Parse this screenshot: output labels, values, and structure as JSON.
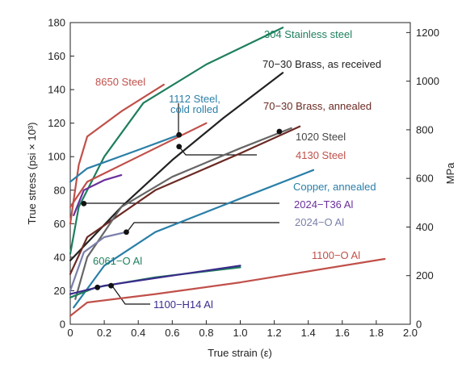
{
  "chart_data": {
    "type": "line",
    "xlabel": "True strain (ε)",
    "ylabel": "True stress (psi × 10³)",
    "ylabel_right": "MPa",
    "xlim": [
      0,
      2.0
    ],
    "ylim": [
      0,
      180
    ],
    "ylim_right": [
      0,
      1241
    ],
    "grid": false,
    "x_ticks": [
      "0",
      "0.2",
      "0.4",
      "0.6",
      "0.8",
      "1.0",
      "1.2",
      "1.4",
      "1.6",
      "1.8",
      "2.0"
    ],
    "y_ticks": [
      "0",
      "20",
      "40",
      "60",
      "80",
      "100",
      "120",
      "140",
      "160",
      "180"
    ],
    "y_right_ticks": [
      "0",
      "200",
      "400",
      "600",
      "800",
      "1000",
      "1200"
    ],
    "series": [
      {
        "name": "304 Stainless steel",
        "color": "#1e7f5c",
        "x": [
          0,
          0.05,
          0.2,
          0.43,
          0.8,
          1.25
        ],
        "y": [
          42,
          70,
          100,
          132,
          155,
          177
        ]
      },
      {
        "name": "70−30 Brass, as received",
        "color": "#222222",
        "x": [
          0,
          0.3,
          0.6,
          0.9,
          1.25
        ],
        "y": [
          38,
          70,
          98,
          123,
          150
        ]
      },
      {
        "name": "8650 Steel",
        "color": "#c0504a",
        "x": [
          0,
          0.05,
          0.1,
          0.3,
          0.55
        ],
        "y": [
          60,
          95,
          112,
          127,
          143
        ]
      },
      {
        "name": "1112 Steel, cold rolled",
        "color": "#2a7fa8",
        "x": [
          0,
          0.1,
          0.4,
          0.64
        ],
        "y": [
          85,
          93,
          104,
          113
        ]
      },
      {
        "name": "70−30 Brass, annealed",
        "color": "#6b2a24",
        "x": [
          0,
          0.1,
          0.5,
          1.0,
          1.35
        ],
        "y": [
          30,
          52,
          80,
          102,
          118
        ]
      },
      {
        "name": "1020 Steel",
        "color": "#666666",
        "x": [
          0.03,
          0.1,
          0.3,
          0.6,
          1.0,
          1.3
        ],
        "y": [
          15,
          40,
          70,
          88,
          105,
          117
        ]
      },
      {
        "name": "4130 Steel",
        "color": "#c0504a",
        "x": [
          0,
          0.1,
          0.4,
          0.8
        ],
        "y": [
          70,
          85,
          100,
          120
        ]
      },
      {
        "name": "Copper, annealed",
        "color": "#2a7fa8",
        "x": [
          0.02,
          0.2,
          0.5,
          1.0,
          1.43
        ],
        "y": [
          10,
          35,
          55,
          75,
          92
        ]
      },
      {
        "name": "2024−T36 Al",
        "color": "#6a2f9c",
        "x": [
          0.02,
          0.08,
          0.2,
          0.3
        ],
        "y": [
          65,
          80,
          86,
          89
        ]
      },
      {
        "name": "2024−O Al",
        "color": "#7b7faa",
        "x": [
          0,
          0.08,
          0.2,
          0.33
        ],
        "y": [
          20,
          43,
          52,
          55
        ]
      },
      {
        "name": "1100−O Al",
        "color": "#c0504a",
        "x": [
          0,
          0.1,
          0.5,
          1.0,
          1.85
        ],
        "y": [
          5,
          13,
          18,
          25,
          39
        ]
      },
      {
        "name": "6061−O Al",
        "color": "#1e7f5c",
        "x": [
          0,
          0.15,
          0.5,
          1.0
        ],
        "y": [
          16,
          22,
          28,
          34
        ]
      },
      {
        "name": "1100−H14 Al",
        "color": "#3b2a8c",
        "x": [
          0,
          0.2,
          0.6,
          1.0
        ],
        "y": [
          18,
          23,
          29,
          35
        ]
      }
    ],
    "annotations": [
      {
        "label": "304 Stainless steel",
        "color": "#1e7f5c"
      },
      {
        "label": "70−30 Brass, as received",
        "color": "#222222"
      },
      {
        "label": "8650 Steel",
        "color": "#c0504a"
      },
      {
        "label": "1112 Steel,",
        "color": "#2a7fa8"
      },
      {
        "label": "cold rolled",
        "color": "#2a7fa8"
      },
      {
        "label": "70−30 Brass, annealed",
        "color": "#6b2a24"
      },
      {
        "label": "1020 Steel",
        "color": "#444444"
      },
      {
        "label": "4130 Steel",
        "color": "#c0504a"
      },
      {
        "label": "Copper, annealed",
        "color": "#2a7fa8"
      },
      {
        "label": "2024−T36 Al",
        "color": "#6a2f9c"
      },
      {
        "label": "2024−O Al",
        "color": "#7b7faa"
      },
      {
        "label": "1100−O Al",
        "color": "#c0504a"
      },
      {
        "label": "6061−O Al",
        "color": "#1e7f5c"
      },
      {
        "label": "1100−H14 Al",
        "color": "#3b2a8c"
      }
    ],
    "markers": [
      {
        "x": 0.64,
        "y": 113
      },
      {
        "x": 1.23,
        "y": 115
      },
      {
        "x": 0.64,
        "y": 106
      },
      {
        "x": 0.08,
        "y": 72
      },
      {
        "x": 0.33,
        "y": 55
      },
      {
        "x": 0.16,
        "y": 22
      },
      {
        "x": 0.24,
        "y": 23
      }
    ]
  }
}
